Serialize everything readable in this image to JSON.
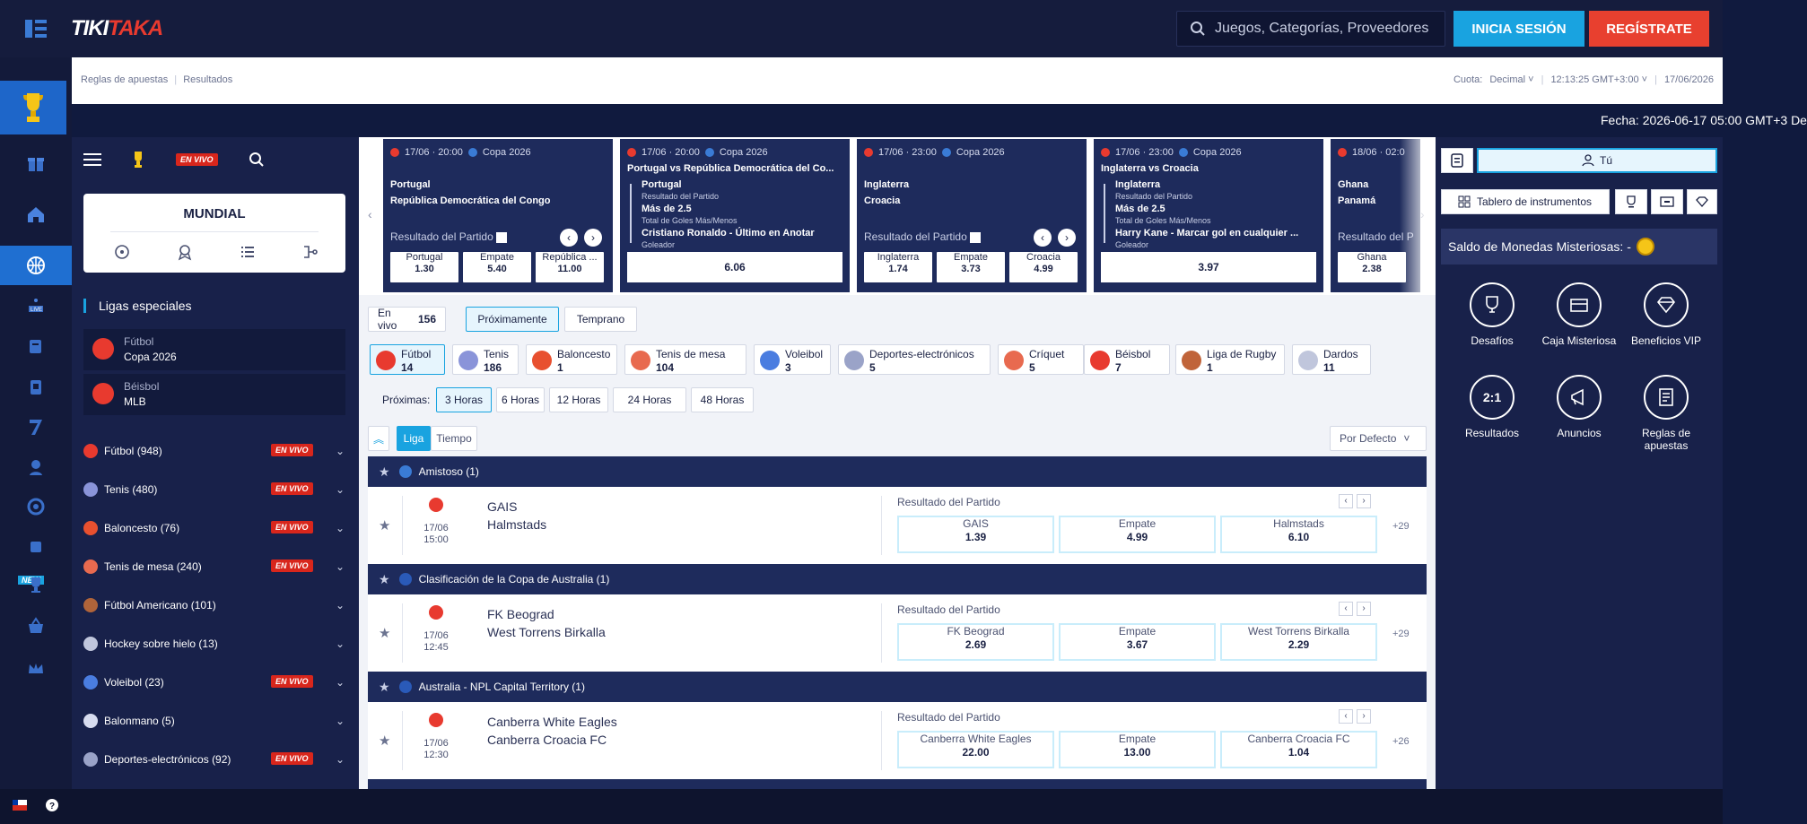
{
  "header": {
    "logo_white": "TIKI",
    "logo_red": "TAKA",
    "search_placeholder": "Juegos, Categorías, Proveedores",
    "login": "INICIA SESIÓN",
    "register": "REGÍSTRATE"
  },
  "crumbs": {
    "rules": "Reglas de apuestas",
    "sep": "|",
    "results": "Resultados",
    "odds_label": "Cuota:",
    "odds_value": "Decimal",
    "time": "12:13:25 GMT+3:00",
    "date": "17/06/2026"
  },
  "ticker": "Fecha: 2026-06-17 05:00 GMT+3 De",
  "left": {
    "live": "EN VIVO",
    "mundial": "MUNDIAL",
    "special_title": "Ligas especiales",
    "special": [
      {
        "sport": "Fútbol",
        "league": "Copa 2026"
      },
      {
        "sport": "Béisbol",
        "league": "MLB"
      }
    ],
    "sports": [
      {
        "name": "Fútbol",
        "count": "(948)",
        "live": "EN VIVO",
        "color": "#e83a2f"
      },
      {
        "name": "Tenis",
        "count": "(480)",
        "live": "EN VIVO",
        "color": "#8a94d9"
      },
      {
        "name": "Baloncesto",
        "count": "(76)",
        "live": "EN VIVO",
        "color": "#e8502f"
      },
      {
        "name": "Tenis de mesa",
        "count": "(240)",
        "live": "EN VIVO",
        "color": "#e86a4f"
      },
      {
        "name": "Fútbol Americano",
        "count": "(101)",
        "live": "",
        "color": "#b0643a"
      },
      {
        "name": "Hockey sobre hielo",
        "count": "(13)",
        "live": "",
        "color": "#c0c6dc"
      },
      {
        "name": "Voleibol",
        "count": "(23)",
        "live": "EN VIVO",
        "color": "#4a7de0"
      },
      {
        "name": "Balonmano",
        "count": "(5)",
        "live": "",
        "color": "#d7dcef"
      },
      {
        "name": "Deportes-electrónicos",
        "count": "(92)",
        "live": "EN VIVO",
        "color": "#9aa3c8"
      }
    ]
  },
  "carousel": [
    {
      "date": "17/06 · 20:00",
      "league": "Copa 2026",
      "team1": "Portugal",
      "team2": "República Democrática del Congo",
      "market": "Resultado del Partido",
      "odds": [
        {
          "l": "Portugal",
          "v": "1.30"
        },
        {
          "l": "Empate",
          "v": "5.40"
        },
        {
          "l": "República ...",
          "v": "11.00"
        }
      ]
    },
    {
      "date": "17/06 · 20:00",
      "league": "Copa 2026",
      "title": "Portugal vs República Democrática del Co...",
      "b1": "Portugal",
      "b1t": "Resultado del Partido",
      "b2": "Más de 2.5",
      "b2t": "Total de Goles Más/Menos",
      "b3": "Cristiano Ronaldo - Último en Anotar",
      "b3t": "Goleador",
      "total": "6.06"
    },
    {
      "date": "17/06 · 23:00",
      "league": "Copa 2026",
      "team1": "Inglaterra",
      "team2": "Croacia",
      "market": "Resultado del Partido",
      "odds": [
        {
          "l": "Inglaterra",
          "v": "1.74"
        },
        {
          "l": "Empate",
          "v": "3.73"
        },
        {
          "l": "Croacia",
          "v": "4.99"
        }
      ]
    },
    {
      "date": "17/06 · 23:00",
      "league": "Copa 2026",
      "title": "Inglaterra vs Croacia",
      "b1": "Inglaterra",
      "b1t": "Resultado del Partido",
      "b2": "Más de 2.5",
      "b2t": "Total de Goles Más/Menos",
      "b3": "Harry Kane - Marcar gol en cualquier ...",
      "b3t": "Goleador",
      "total": "3.97"
    },
    {
      "date": "18/06 · 02:0",
      "team1": "Ghana",
      "team2": "Panamá",
      "market": "Resultado del P",
      "odd1": "Ghana",
      "odd1v": "2.38"
    }
  ],
  "filters": {
    "live": "En vivo",
    "live_count": "156",
    "upcoming": "Próximamente",
    "early": "Temprano",
    "proximas": "Próximas:",
    "hours": [
      "3 Horas",
      "6 Horas",
      "12 Horas",
      "24 Horas",
      "48 Horas"
    ],
    "liga": "Liga",
    "tiempo": "Tiempo",
    "sort": "Por Defecto"
  },
  "sport_tabs": [
    {
      "name": "Fútbol",
      "count": "14",
      "color": "#e83a2f"
    },
    {
      "name": "Tenis",
      "count": "186",
      "color": "#8a94d9"
    },
    {
      "name": "Baloncesto",
      "count": "1",
      "color": "#e8502f"
    },
    {
      "name": "Tenis de mesa",
      "count": "104",
      "color": "#e86a4f"
    },
    {
      "name": "Voleibol",
      "count": "3",
      "color": "#4a7de0"
    },
    {
      "name": "Deportes-electrónicos",
      "count": "5",
      "color": "#9aa3c8"
    },
    {
      "name": "Críquet",
      "count": "5",
      "color": "#e86a4f"
    },
    {
      "name": "Béisbol",
      "count": "7",
      "color": "#e83a2f"
    },
    {
      "name": "Liga de Rugby",
      "count": "1",
      "color": "#c0643a"
    },
    {
      "name": "Dardos",
      "count": "11",
      "color": "#c0c6dc"
    }
  ],
  "leagues": [
    {
      "name": "Amistoso (1)",
      "date": "17/06",
      "time": "15:00",
      "team1": "GAIS",
      "team2": "Halmstads",
      "market": "Resultado del Partido",
      "o1": "GAIS",
      "v1": "1.39",
      "o2": "Empate",
      "v2": "4.99",
      "o3": "Halmstads",
      "v3": "6.10",
      "more": "+29",
      "flag": "#3a7bd5"
    },
    {
      "name": "Clasificación de la Copa de Australia (1)",
      "date": "17/06",
      "time": "12:45",
      "team1": "FK Beograd",
      "team2": "West Torrens Birkalla",
      "market": "Resultado del Partido",
      "o1": "FK Beograd",
      "v1": "2.69",
      "o2": "Empate",
      "v2": "3.67",
      "o3": "West Torrens Birkalla",
      "v3": "2.29",
      "more": "+29",
      "flag": "#2a5ab8"
    },
    {
      "name": "Australia - NPL Capital Territory (1)",
      "date": "17/06",
      "time": "12:30",
      "team1": "Canberra White Eagles",
      "team2": "Canberra Croacia FC",
      "market": "Resultado del Partido",
      "o1": "Canberra White Eagles",
      "v1": "22.00",
      "o2": "Empate",
      "v2": "13.00",
      "o3": "Canberra Croacia FC",
      "v3": "1.04",
      "more": "+26",
      "flag": "#2a5ab8"
    }
  ],
  "right": {
    "you": "Tú",
    "dashboard": "Tablero de instrumentos",
    "saldo": "Saldo de Monedas Misteriosas: -",
    "tiles": [
      "Desafíos",
      "Caja Misteriosa",
      "Beneficios VIP",
      "Resultados",
      "Anuncios",
      "Reglas de apuestas"
    ],
    "score_icon_text": "2:1"
  }
}
